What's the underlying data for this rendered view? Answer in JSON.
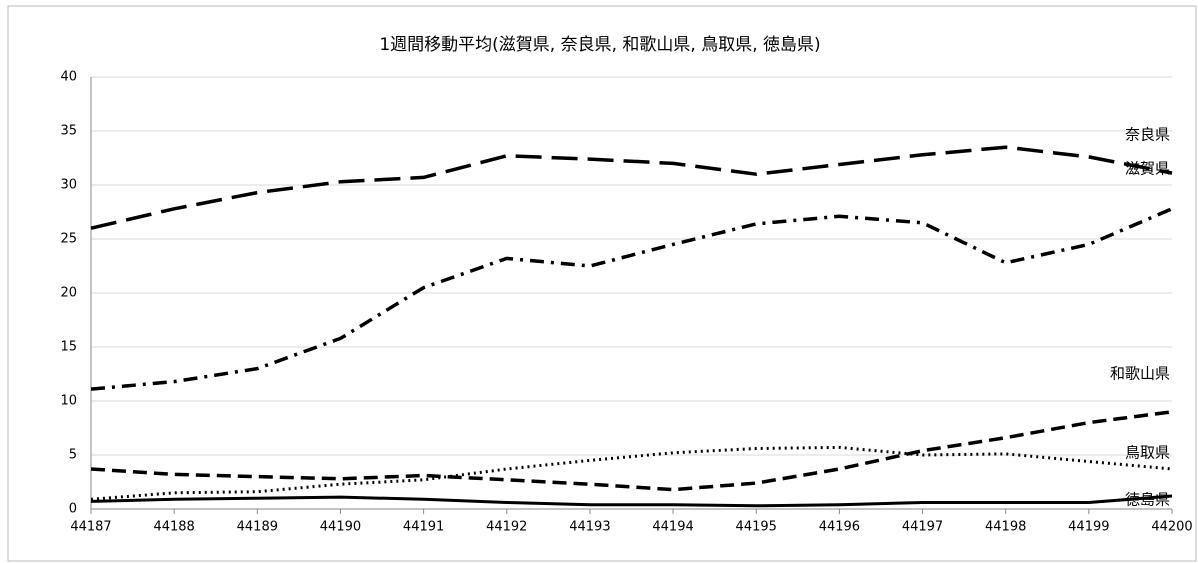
{
  "chart_data": {
    "type": "line",
    "title": "1週間移動平均(滋賀県, 奈良県, 和歌山県, 鳥取県, 徳島県)",
    "x": [
      44187,
      44188,
      44189,
      44190,
      44191,
      44192,
      44193,
      44194,
      44195,
      44196,
      44197,
      44198,
      44199,
      44200
    ],
    "xlim": [
      44187,
      44200
    ],
    "xticks": [
      44187,
      44188,
      44189,
      44190,
      44191,
      44192,
      44193,
      44194,
      44195,
      44196,
      44197,
      44198,
      44199,
      44200
    ],
    "ylim": [
      0,
      40
    ],
    "yticks": [
      0,
      5,
      10,
      15,
      20,
      25,
      30,
      35,
      40
    ],
    "grid": true,
    "series": [
      {
        "name": "奈良県",
        "color": "#000000",
        "style": "long-dash",
        "values": [
          26.0,
          27.8,
          29.3,
          30.3,
          30.7,
          32.7,
          32.4,
          32.0,
          31.0,
          31.9,
          32.8,
          33.5,
          32.6,
          31.1
        ]
      },
      {
        "name": "滋賀県",
        "color": "#000000",
        "style": "dash-dot",
        "values": [
          11.1,
          11.8,
          13.0,
          15.8,
          20.5,
          23.2,
          22.5,
          24.5,
          26.4,
          27.1,
          26.5,
          22.8,
          24.5,
          27.8
        ]
      },
      {
        "name": "和歌山県",
        "color": "#000000",
        "style": "dash",
        "values": [
          3.7,
          3.2,
          3.0,
          2.8,
          3.1,
          2.7,
          2.3,
          1.8,
          2.4,
          3.7,
          5.4,
          6.6,
          8.0,
          9.0
        ]
      },
      {
        "name": "鳥取県",
        "color": "#000000",
        "style": "dot",
        "values": [
          0.9,
          1.5,
          1.6,
          2.3,
          2.7,
          3.7,
          4.5,
          5.2,
          5.6,
          5.7,
          5.0,
          5.1,
          4.4,
          3.7
        ]
      },
      {
        "name": "徳島県",
        "color": "#000000",
        "style": "solid",
        "values": [
          0.7,
          0.9,
          1.0,
          1.1,
          0.9,
          0.6,
          0.4,
          0.4,
          0.3,
          0.4,
          0.6,
          0.6,
          0.6,
          1.2
        ]
      }
    ]
  }
}
